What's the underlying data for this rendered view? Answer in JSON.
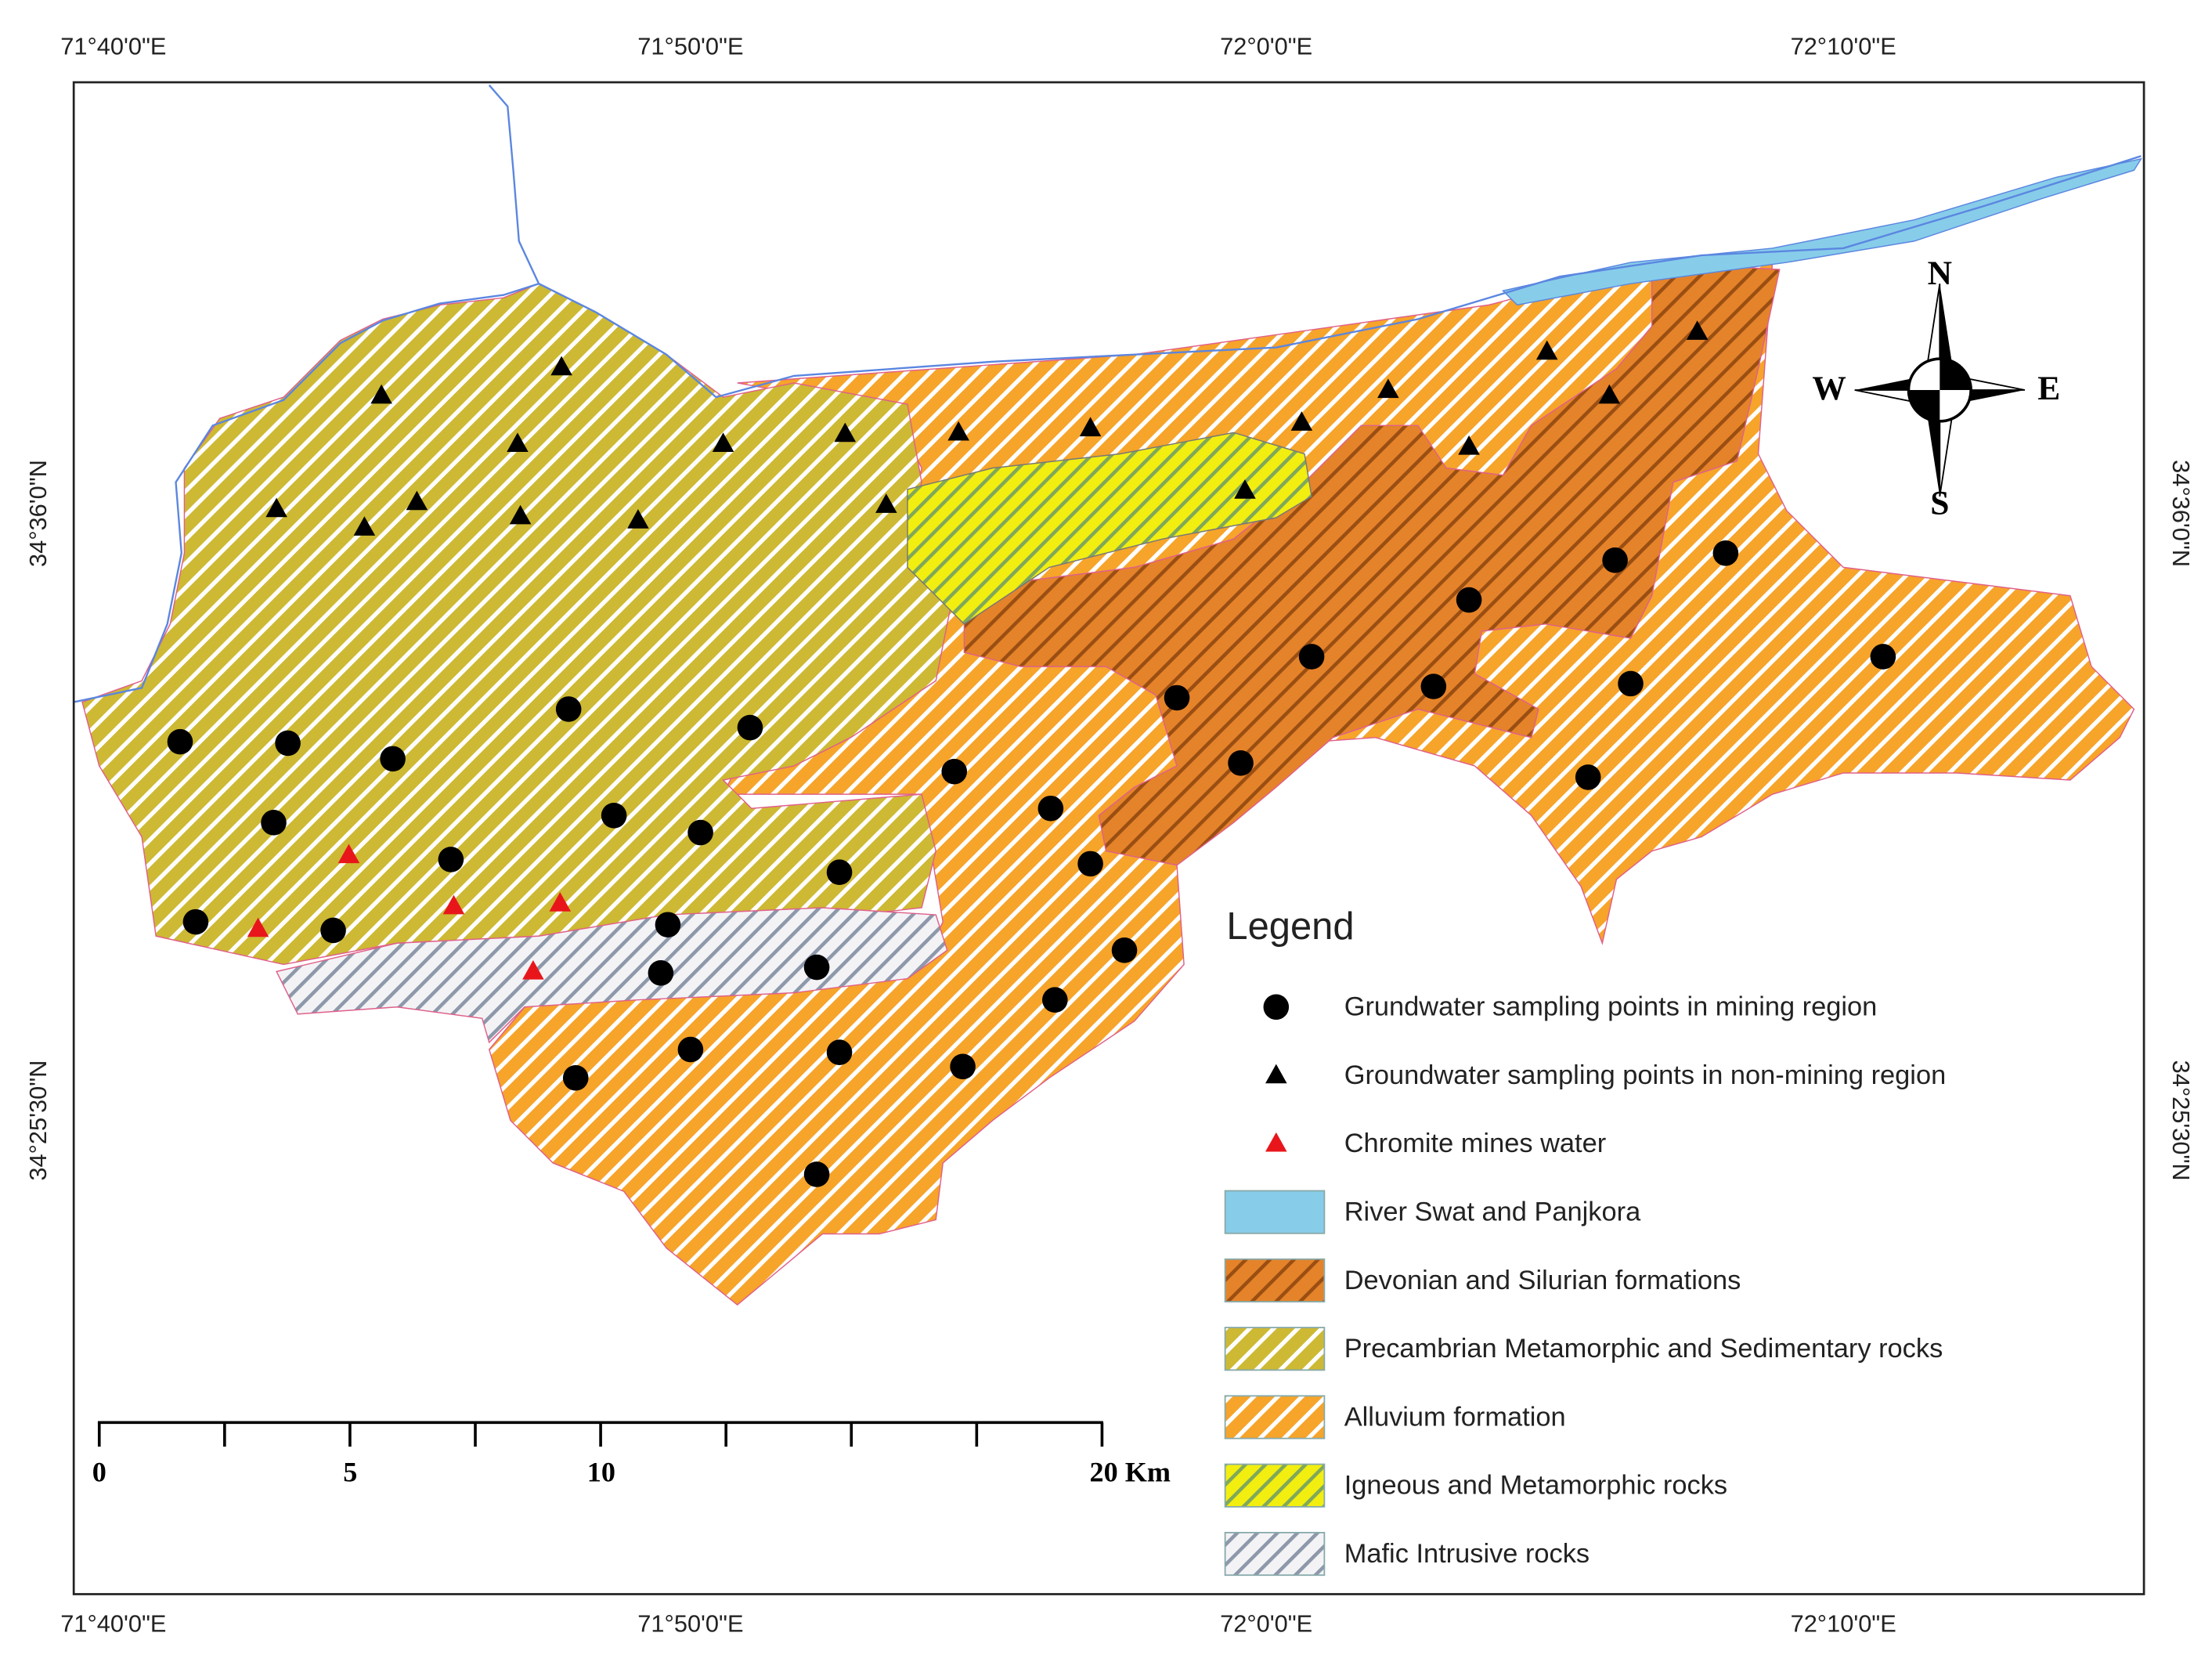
{
  "map": {
    "top_labels": [
      "71°40'0\"E",
      "71°50'0\"E",
      "72°0'0\"E",
      "72°10'0\"E"
    ],
    "bottom_labels": [
      "71°40'0\"E",
      "71°50'0\"E",
      "72°0'0\"E",
      "72°10'0\"E"
    ],
    "left_labels": [
      "34°36'0\"N",
      "34°25'30\"N"
    ],
    "right_labels": [
      "34°36'0\"N",
      "34°25'30\"N"
    ],
    "compass": {
      "north": "N",
      "south": "S",
      "east": "E",
      "west": "W"
    },
    "scale_bar": {
      "labels": [
        "0",
        "5",
        "10",
        "20 Km"
      ]
    },
    "legend": {
      "title": "Legend",
      "items": [
        "Grundwater sampling points in mining region",
        "Groundwater sampling points in non-mining region",
        "Chromite mines water",
        "River Swat and Panjkora",
        "Devonian and Silurian formations",
        "Precambrian Metamorphic and Sedimentary rocks",
        "Alluvium formation",
        "Igneous and Metamorphic rocks",
        "Mafic Intrusive rocks"
      ]
    }
  }
}
